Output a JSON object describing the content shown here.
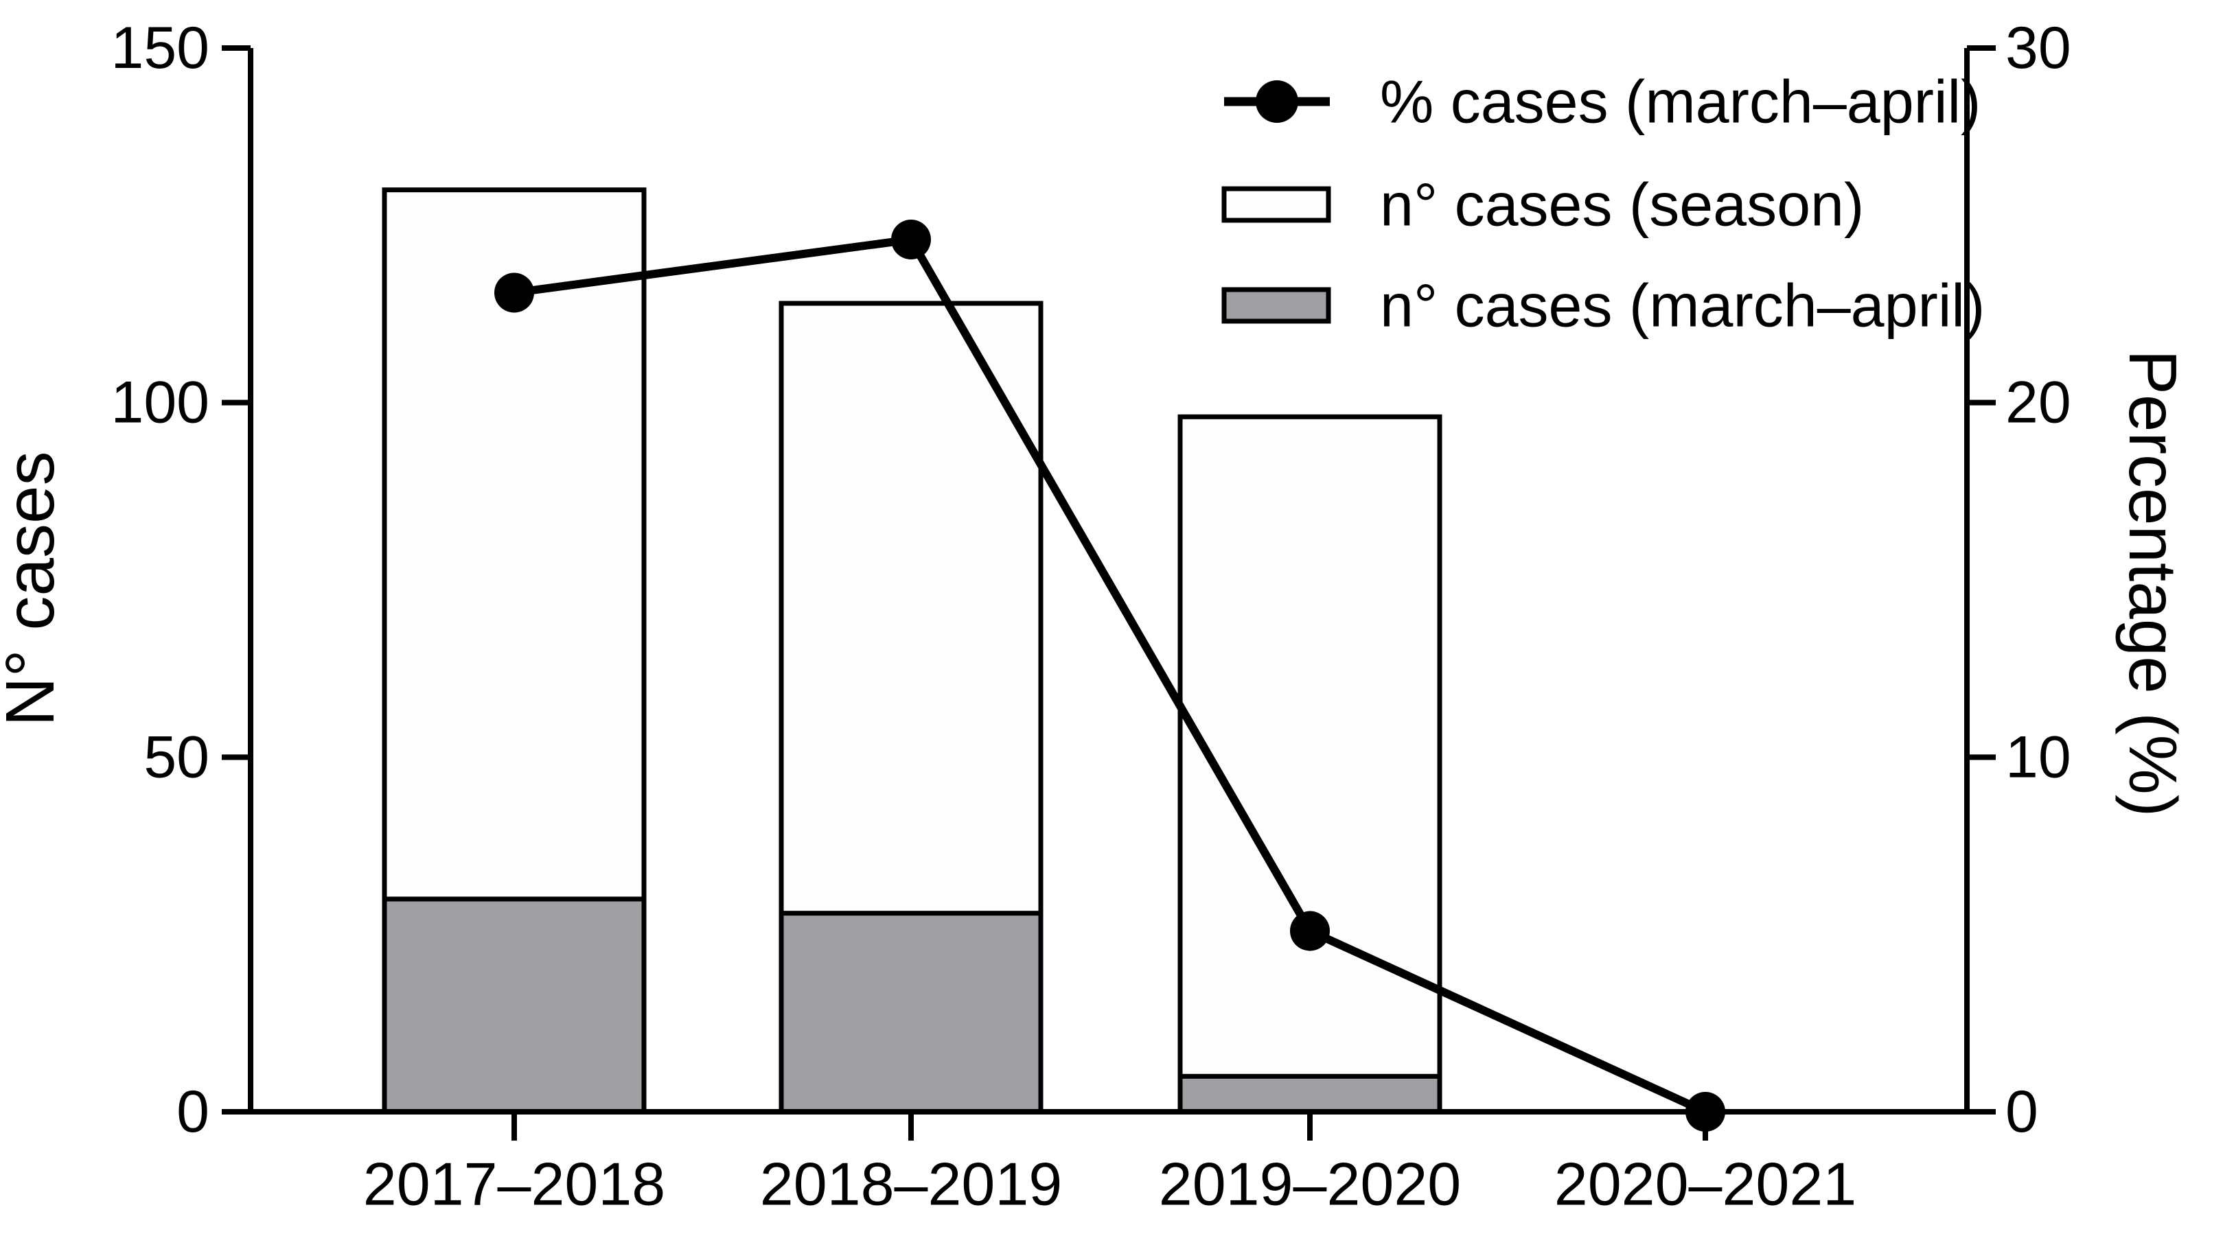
{
  "figure": {
    "background": "#ffffff",
    "left_axis": {
      "title": "N° cases",
      "tick_labels": [
        "150",
        "100",
        "50",
        "0"
      ],
      "min": 0,
      "max": 150
    },
    "right_axis": {
      "title": "Percentage (%)",
      "tick_labels": [
        "30",
        "20",
        "10",
        "0"
      ],
      "min": 0,
      "max": 30
    },
    "x_axis": {
      "categories": [
        "2017–2018",
        "2018–2019",
        "2019–2020",
        "2020–2021"
      ]
    },
    "legend": {
      "items": [
        {
          "marker": "line-dot",
          "label": "% cases (march–april)"
        },
        {
          "marker": "open-box",
          "label": "n° cases (season)"
        },
        {
          "marker": "gray-box",
          "label": "n° cases (march–april)"
        }
      ]
    },
    "colors": {
      "black": "#000000",
      "gray_fill": "#a0a0a4",
      "white_fill": "#fefefe",
      "background": "#ffffff"
    }
  },
  "chart_data": {
    "type": "combo-bar-line",
    "categories": [
      "2017–2018",
      "2018–2019",
      "2019–2020",
      "2020–2021"
    ],
    "series": [
      {
        "name": "n° cases (season)",
        "type": "bar",
        "style": "open",
        "axis": "left",
        "values": [
          130,
          114,
          98,
          0
        ]
      },
      {
        "name": "n° cases (march–april)",
        "type": "bar",
        "style": "filled-gray",
        "axis": "left",
        "values": [
          30,
          28,
          5,
          0
        ]
      },
      {
        "name": "% cases (march–april)",
        "type": "line",
        "axis": "right",
        "values": [
          23.1,
          24.6,
          5.1,
          0
        ]
      }
    ],
    "title": "",
    "xlabel": "",
    "ylabel": "N° cases",
    "y2label": "Percentage (%)",
    "ylim": [
      0,
      150
    ],
    "y2lim": [
      0,
      30
    ],
    "left_ticks": [
      150,
      100,
      50,
      0
    ],
    "right_ticks": [
      30,
      20,
      10,
      0
    ],
    "grid": false,
    "legend_position": "top-right"
  }
}
